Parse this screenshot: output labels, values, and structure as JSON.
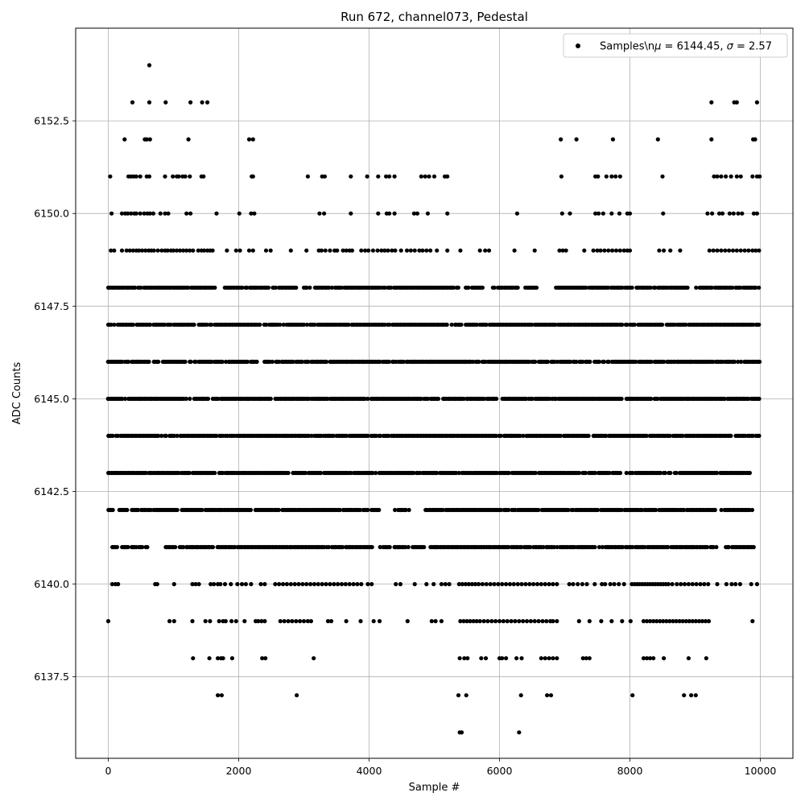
{
  "chart_data": {
    "type": "scatter",
    "title": "Run 672, channel073, Pedestal",
    "xlabel": "Sample #",
    "ylabel": "ADC Counts",
    "xlim": [
      -500,
      10500
    ],
    "ylim": [
      6135.3,
      6155.0
    ],
    "xticks": [
      0,
      2000,
      4000,
      6000,
      8000,
      10000
    ],
    "xtick_labels": [
      "0",
      "2000",
      "4000",
      "6000",
      "8000",
      "10000"
    ],
    "yticks": [
      6137.5,
      6140.0,
      6142.5,
      6145.0,
      6147.5,
      6150.0,
      6152.5
    ],
    "ytick_labels": [
      "6137.5",
      "6140.0",
      "6142.5",
      "6145.0",
      "6147.5",
      "6150.0",
      "6152.5"
    ],
    "grid": true,
    "legend_position": "top-right",
    "marker_color": "#000000",
    "series": [
      {
        "name": "Samples\\nμ = 6144.45, σ = 2.57",
        "levels": [
          {
            "y": 6154,
            "x": [
              630
            ]
          },
          {
            "y": 6153,
            "x": [
              370,
              630,
              880,
              1260,
              1440,
              1520,
              9250,
              9600,
              9640,
              9950
            ]
          },
          {
            "y": 6152,
            "x": [
              250,
              560,
              590,
              640,
              1230,
              2160,
              2220,
              6940,
              7180,
              7740,
              8430,
              9250,
              9890,
              9920
            ]
          },
          {
            "y": 6151,
            "x": [
              30,
              310,
              350,
              390,
              430,
              490,
              590,
              630,
              870,
              990,
              1050,
              1080,
              1140,
              1180,
              1250,
              1430,
              1460,
              2200,
              2220,
              3060,
              3280,
              3320,
              3720,
              3970,
              4140,
              4260,
              4310,
              4390,
              4800,
              4860,
              4920,
              5000,
              5160,
              5200,
              6950,
              7470,
              7510,
              7640,
              7720,
              7780,
              7850,
              8500,
              9290,
              9340,
              9400,
              9470,
              9550,
              9640,
              9700,
              9880,
              9950,
              9990
            ]
          },
          {
            "y": 6150,
            "x": [
              50,
              210,
              260,
              300,
              350,
              400,
              430,
              490,
              550,
              600,
              640,
              690,
              800,
              870,
              920,
              1200,
              1260,
              1660,
              2010,
              2190,
              2240,
              3240,
              3310,
              3720,
              4140,
              4270,
              4310,
              4390,
              4690,
              4740,
              4900,
              5200,
              6270,
              6960,
              7080,
              7470,
              7520,
              7590,
              7720,
              7840,
              7960,
              8000,
              8510,
              9190,
              9260,
              9370,
              9420,
              9530,
              9590,
              9660,
              9720,
              9900,
              9950
            ]
          },
          {
            "y": 6149,
            "x": [
              40,
              90,
              210,
              280,
              330,
              380,
              430,
              470,
              520,
              570,
              620,
              660,
              700,
              760,
              820,
              870,
              910,
              960,
              1000,
              1050,
              1100,
              1150,
              1200,
              1250,
              1300,
              1380,
              1430,
              1470,
              1520,
              1560,
              1600,
              1820,
              1960,
              2020,
              2160,
              2220,
              2420,
              2490,
              2800,
              3040,
              3230,
              3270,
              3330,
              3400,
              3470,
              3510,
              3600,
              3650,
              3700,
              3740,
              3880,
              3940,
              3990,
              4060,
              4130,
              4190,
              4240,
              4290,
              4350,
              4400,
              4490,
              4580,
              4640,
              4700,
              4770,
              4820,
              4880,
              4940,
              5040,
              5200,
              5400,
              5700,
              5780,
              5840,
              6230,
              6540,
              6920,
              6970,
              7020,
              7300,
              7440,
              7500,
              7550,
              7610,
              7670,
              7730,
              7790,
              7850,
              7910,
              7960,
              8000,
              8450,
              8520,
              8620,
              8770,
              9220,
              9280,
              9340,
              9400,
              9460,
              9520,
              9580,
              9640,
              9700,
              9760,
              9820,
              9880,
              9930,
              9980
            ]
          },
          {
            "y": 6148,
            "x_ranges": [
              [
                0,
                1640
              ],
              [
                1790,
                2140
              ],
              [
                2170,
                2460
              ],
              [
                2520,
                2880
              ],
              [
                3000,
                3230
              ],
              [
                3240,
                3600
              ],
              [
                3620,
                4950
              ],
              [
                4960,
                5430
              ],
              [
                5480,
                5750
              ],
              [
                5900,
                6300
              ],
              [
                6400,
                6590
              ],
              [
                6870,
                7600
              ],
              [
                7620,
                8040
              ],
              [
                8100,
                8600
              ],
              [
                8620,
                8900
              ],
              [
                9020,
                10000
              ]
            ]
          },
          {
            "y": 6147,
            "x_ranges": [
              [
                0,
                1340
              ],
              [
                1390,
                3520
              ],
              [
                3540,
                5700
              ],
              [
                5730,
                6860
              ],
              [
                6900,
                8460
              ],
              [
                8470,
                10000
              ]
            ]
          },
          {
            "y": 6146,
            "x_ranges": [
              [
                0,
                2300
              ],
              [
                2400,
                3090
              ],
              [
                3110,
                5560
              ],
              [
                5590,
                6570
              ],
              [
                6600,
                8690
              ],
              [
                8720,
                10000
              ]
            ]
          },
          {
            "y": 6145,
            "x_ranges": [
              [
                0,
                10000
              ]
            ]
          },
          {
            "y": 6144,
            "x_ranges": [
              [
                0,
                9560
              ],
              [
                9620,
                10000
              ]
            ]
          },
          {
            "y": 6143,
            "x_ranges": [
              [
                0,
                3740
              ],
              [
                3770,
                9860
              ]
            ]
          },
          {
            "y": 6142,
            "x_ranges": [
              [
                0,
                90
              ],
              [
                170,
                300
              ],
              [
                360,
                1070
              ],
              [
                1130,
                3570
              ],
              [
                3600,
                4170
              ],
              [
                4400,
                4630
              ],
              [
                4870,
                9320
              ],
              [
                9400,
                9900
              ]
            ]
          },
          {
            "y": 6141,
            "x_ranges": [
              [
                60,
                160
              ],
              [
                210,
                600
              ],
              [
                880,
                1040
              ],
              [
                1100,
                3610
              ],
              [
                3640,
                4070
              ],
              [
                4170,
                4850
              ],
              [
                4940,
                7460
              ],
              [
                7530,
                9330
              ],
              [
                9470,
                9920
              ]
            ]
          },
          {
            "y": 6140,
            "x": [
              60,
              110,
              150,
              720,
              750,
              1010,
              1290,
              1340,
              1390,
              1570,
              1620,
              1680,
              1720,
              1790,
              1880,
              1980,
              2050,
              2110,
              2190,
              2340,
              2400,
              2560,
              2620,
              2680,
              2740,
              2800,
              2860,
              2920,
              2980,
              3040,
              3100,
              3160,
              3220,
              3280,
              3340,
              3400,
              3460,
              3520,
              3580,
              3640,
              3700,
              3760,
              3820,
              3880,
              3980,
              4040,
              4410,
              4480,
              4700,
              4880,
              4990,
              5110,
              5170,
              5230,
              5380,
              5430,
              5480,
              5530,
              5580,
              5630,
              5680,
              5740,
              5800,
              5860,
              5920,
              5980,
              6040,
              6100,
              6160,
              6220,
              6280,
              6340,
              6400,
              6460,
              6520,
              6580,
              6640,
              6700,
              6760,
              6820,
              6880,
              7070,
              7130,
              7200,
              7270,
              7340,
              7460,
              7570,
              7620,
              7700,
              7760,
              7830,
              7910,
              8030,
              8070,
              8110,
              8150,
              8190,
              8230,
              8270,
              8310,
              8350,
              8390,
              8430,
              8470,
              8510,
              8550,
              8590,
              8650,
              8720,
              8780,
              8840,
              8900,
              8960,
              9020,
              9080,
              9140,
              9200,
              9340,
              9480,
              9560,
              9620,
              9690,
              9860,
              9950
            ]
          },
          {
            "y": 6139,
            "x": [
              0,
              940,
              1010,
              1290,
              1490,
              1560,
              1700,
              1760,
              1800,
              1890,
              1960,
              2090,
              2260,
              2300,
              2350,
              2400,
              2640,
              2700,
              2760,
              2820,
              2880,
              2940,
              3000,
              3060,
              3110,
              3370,
              3420,
              3650,
              3870,
              4070,
              4160,
              4590,
              4960,
              5020,
              5110,
              5400,
              5450,
              5500,
              5550,
              5600,
              5650,
              5700,
              5760,
              5820,
              5880,
              5940,
              6000,
              6060,
              6120,
              6180,
              6240,
              6300,
              6360,
              6420,
              6480,
              6540,
              6600,
              6660,
              6720,
              6780,
              6820,
              6880,
              7220,
              7380,
              7560,
              7720,
              7880,
              8010,
              8210,
              8260,
              8310,
              8360,
              8410,
              8460,
              8510,
              8560,
              8610,
              8660,
              8710,
              8760,
              8810,
              8860,
              8910,
              8960,
              9010,
              9060,
              9110,
              9160,
              9210,
              9880
            ]
          },
          {
            "y": 6138,
            "x": [
              1300,
              1550,
              1680,
              1730,
              1760,
              1900,
              2360,
              2410,
              3150,
              5390,
              5460,
              5510,
              5720,
              5790,
              6000,
              6040,
              6100,
              6260,
              6340,
              6640,
              6700,
              6760,
              6820,
              6880,
              7280,
              7330,
              7380,
              8210,
              8260,
              8310,
              8360,
              8520,
              8900,
              9170
            ]
          },
          {
            "y": 6137,
            "x": [
              1680,
              1740,
              2890,
              5370,
              5490,
              6330,
              6730,
              6790,
              8040,
              8830,
              8940,
              9010
            ]
          },
          {
            "y": 6136,
            "x": [
              5390,
              5420,
              6300
            ]
          }
        ]
      }
    ]
  }
}
